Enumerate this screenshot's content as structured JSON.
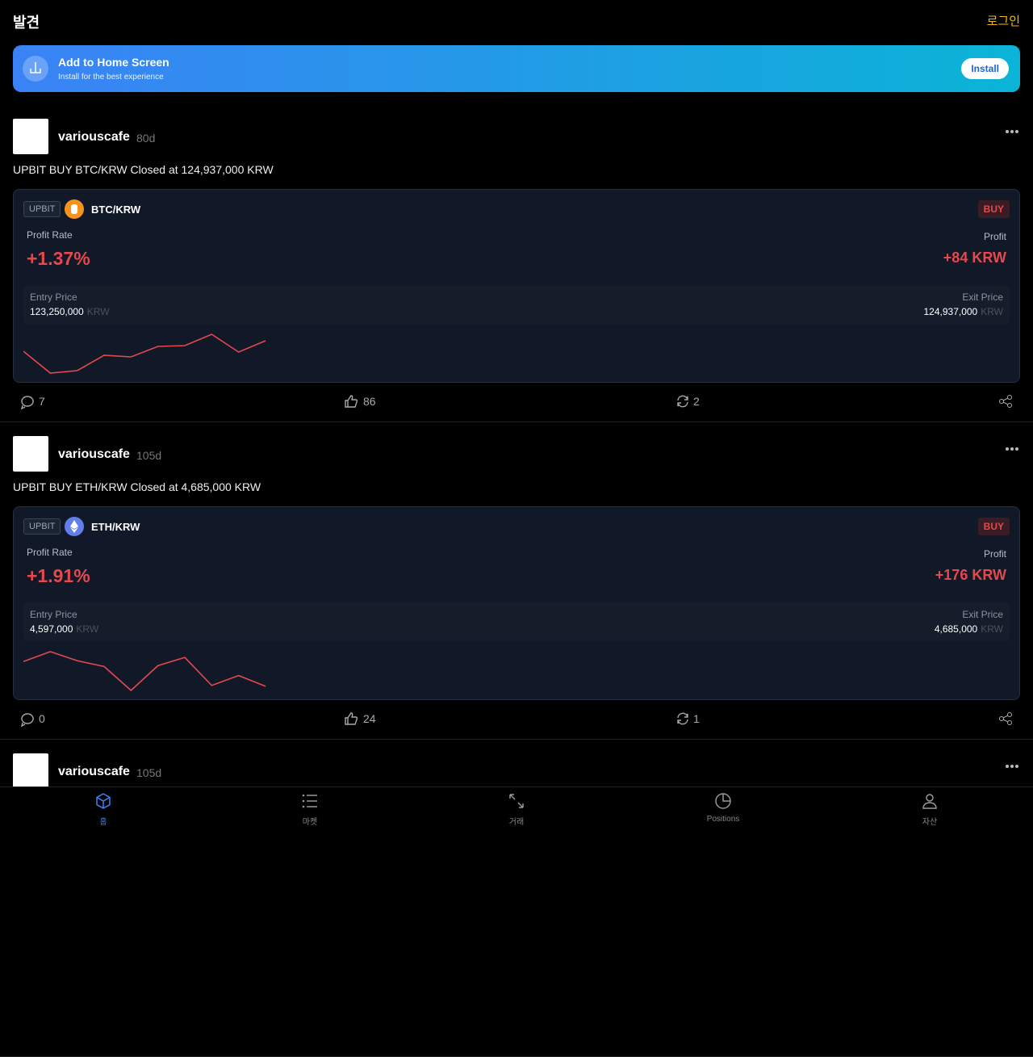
{
  "header": {
    "title": "발견",
    "login": "로그인"
  },
  "banner": {
    "title": "Add to Home Screen",
    "subtitle": "Install for the best experience",
    "button": "Install"
  },
  "posts": [
    {
      "user": "variouscafe",
      "age": "80d",
      "text": "UPBIT BUY BTC/KRW Closed at 124,937,000 KRW",
      "exchange": "UPBIT",
      "pair": "BTC/KRW",
      "side": "BUY",
      "profit_rate_label": "Profit Rate",
      "profit_rate": "+1.37%",
      "profit_label": "Profit",
      "profit": "+84 KRW",
      "entry_label": "Entry Price",
      "entry_price": "123,250,000",
      "entry_unit": "KRW",
      "exit_label": "Exit Price",
      "exit_price": "124,937,000",
      "exit_unit": "KRW",
      "sparkline": [
        45,
        18,
        21,
        40,
        38,
        51,
        52,
        66,
        44,
        58
      ],
      "comments": 7,
      "likes": 86,
      "reposts": 2
    },
    {
      "user": "variouscafe",
      "age": "105d",
      "text": "UPBIT BUY ETH/KRW Closed at 4,685,000 KRW",
      "exchange": "UPBIT",
      "pair": "ETH/KRW",
      "side": "BUY",
      "profit_rate_label": "Profit Rate",
      "profit_rate": "+1.91%",
      "profit_label": "Profit",
      "profit": "+176 KRW",
      "entry_label": "Entry Price",
      "entry_price": "4,597,000",
      "entry_unit": "KRW",
      "exit_label": "Exit Price",
      "exit_price": "4,685,000",
      "exit_unit": "KRW",
      "sparkline": [
        60,
        72,
        61,
        54,
        25,
        55,
        65,
        31,
        43,
        30
      ],
      "comments": 0,
      "likes": 24,
      "reposts": 1
    },
    {
      "user": "variouscafe",
      "age": "105d"
    }
  ],
  "nav": [
    "홈",
    "마켓",
    "거래",
    "Positions",
    "자산"
  ]
}
